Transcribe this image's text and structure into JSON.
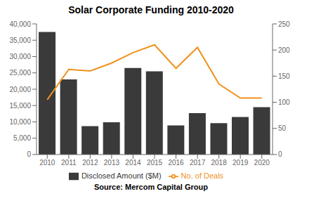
{
  "chart_data": {
    "type": "bar",
    "title": "Solar Corporate Funding 2010-2020",
    "annotations": [
      "Source: Mercom Capital Group"
    ],
    "categories": [
      "2010",
      "2011",
      "2012",
      "2013",
      "2014",
      "2015",
      "2016",
      "2017",
      "2018",
      "2019",
      "2020"
    ],
    "series": [
      {
        "name": "Disclosed Amount ($M)",
        "type": "bar",
        "color": "#3a3a3a",
        "values": [
          37500,
          23000,
          8700,
          9900,
          26500,
          25500,
          8900,
          12700,
          9600,
          11500,
          14500
        ]
      },
      {
        "name": "No. of Deals",
        "type": "line",
        "axis": "y2",
        "color": "#f0921e",
        "values": [
          105,
          163,
          160,
          175,
          195,
          210,
          165,
          205,
          135,
          108,
          108
        ]
      }
    ],
    "ylim": [
      0,
      40000
    ],
    "yticks": [
      0,
      {
        "value": 5000,
        "label": "5,000"
      },
      {
        "value": 10000,
        "label": "10,000"
      },
      {
        "value": 15000,
        "label": "15,000"
      },
      {
        "value": 20000,
        "label": "20,000"
      },
      {
        "value": 25000,
        "label": "25,000"
      },
      {
        "value": 30000,
        "label": "30,000"
      },
      {
        "value": 35000,
        "label": "35,000"
      },
      {
        "value": 40000,
        "label": "40,000"
      }
    ],
    "y2lim": [
      0,
      250
    ],
    "y2ticks": [
      0,
      50,
      100,
      150,
      200,
      250
    ],
    "grid": false,
    "legend": "bottom"
  }
}
